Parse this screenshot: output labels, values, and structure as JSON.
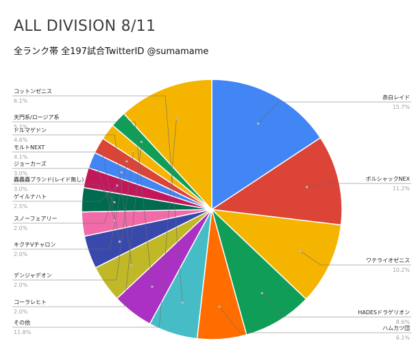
{
  "chart_data": {
    "type": "pie",
    "title": "ALL DIVISION 8/11",
    "subtitle": "全ランク帯 全197試合TwitterID @sumamame",
    "slices": [
      {
        "label": "赤白レイド",
        "value": 15.7,
        "pct_label": "15.7%",
        "color": "#4285f4"
      },
      {
        "label": "ボルシャックNEX",
        "value": 11.2,
        "pct_label": "11.2%",
        "color": "#db4437"
      },
      {
        "label": "ワテライオゼニス",
        "value": 10.2,
        "pct_label": "10.2%",
        "color": "#f4b400"
      },
      {
        "label": "HADESドラゲリオン",
        "value": 8.6,
        "pct_label": "8.6%",
        "color": "#0f9d58"
      },
      {
        "label": "ハムカツ団",
        "value": 6.1,
        "pct_label": "6.1%",
        "color": "#ff6d00"
      },
      {
        "label": "コットンゼニス",
        "value": 6.1,
        "pct_label": "6.1%",
        "color": "#46bdc6"
      },
      {
        "label": "天門系/ロージア系",
        "value": 5.1,
        "pct_label": "5.1%",
        "color": "#ab30c4"
      },
      {
        "label": "ドルマゲドン",
        "value": 4.6,
        "pct_label": "4.6%",
        "color": "#c0b826"
      },
      {
        "label": "モルトNEXT",
        "value": 4.1,
        "pct_label": "4.1%",
        "color": "#3949ab"
      },
      {
        "label": "ジョーカーズ",
        "value": 3.0,
        "pct_label": "3.0%",
        "color": "#f06ba8"
      },
      {
        "label": "轟轟轟ブランド(レイド無し)",
        "value": 3.0,
        "pct_label": "3.0%",
        "color": "#006b4f"
      },
      {
        "label": "ゲイルナハト",
        "value": 2.5,
        "pct_label": "2.5%",
        "color": "#c2185b"
      },
      {
        "label": "スノーフェアリー",
        "value": 2.0,
        "pct_label": "2.0%",
        "color": "#4285f4"
      },
      {
        "label": "キクチVチャロン",
        "value": 2.0,
        "pct_label": "2.0%",
        "color": "#db4437"
      },
      {
        "label": "デンジャデオン",
        "value": 2.0,
        "pct_label": "2.0%",
        "color": "#f4b400"
      },
      {
        "label": "コーラレヒト",
        "value": 2.0,
        "pct_label": "2.0%",
        "color": "#0f9d58"
      },
      {
        "label": "その他",
        "value": 11.8,
        "pct_label": "11.8%",
        "color": "#f4b400"
      }
    ]
  }
}
